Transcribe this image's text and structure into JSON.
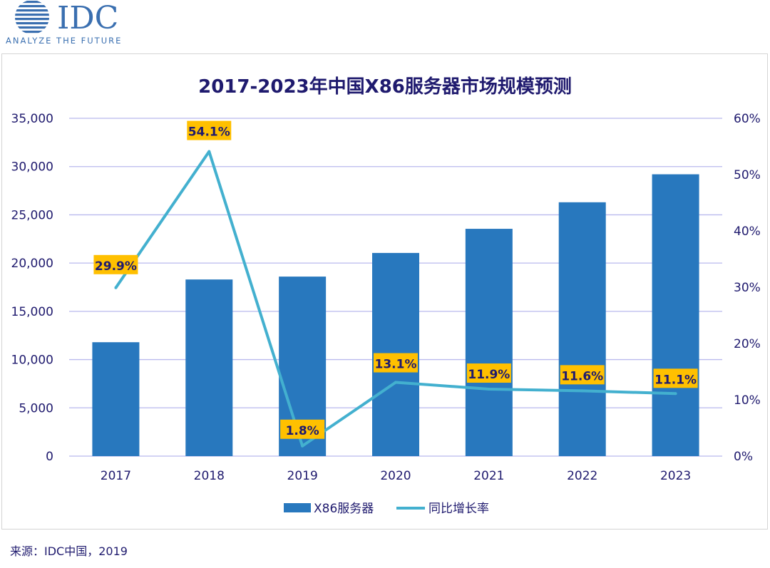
{
  "logo": {
    "brand": "IDC",
    "tagline": "ANALYZE THE FUTURE"
  },
  "colors": {
    "bar": "#2878be",
    "line": "#43b0cf",
    "label_bg": "#ffc000",
    "text": "#1f1a6e",
    "grid": "#b9b9ee"
  },
  "chart_data": {
    "type": "bar",
    "title": "2017-2023年中国X86服务器市场规模预测",
    "categories": [
      "2017",
      "2018",
      "2019",
      "2020",
      "2021",
      "2022",
      "2023"
    ],
    "series": [
      {
        "name": "X86服务器",
        "type": "bar",
        "axis": "left",
        "values": [
          11800,
          18300,
          18600,
          21050,
          23550,
          26300,
          29200
        ]
      },
      {
        "name": "同比增长率",
        "type": "line",
        "axis": "right",
        "values": [
          29.9,
          54.1,
          1.8,
          13.1,
          11.9,
          11.6,
          11.1
        ],
        "labels": [
          "29.9%",
          "54.1%",
          "1.8%",
          "13.1%",
          "11.9%",
          "11.6%",
          "11.1%"
        ]
      }
    ],
    "y_left": {
      "min": 0,
      "max": 35000,
      "ticks": [
        "0",
        "5,000",
        "10,000",
        "15,000",
        "20,000",
        "25,000",
        "30,000",
        "35,000"
      ]
    },
    "y_right": {
      "min": 0,
      "max": 60,
      "ticks": [
        "0%",
        "10%",
        "20%",
        "30%",
        "40%",
        "50%",
        "60%"
      ]
    },
    "grid": true,
    "legend": "bottom"
  },
  "source": "来源：IDC中国，2019"
}
